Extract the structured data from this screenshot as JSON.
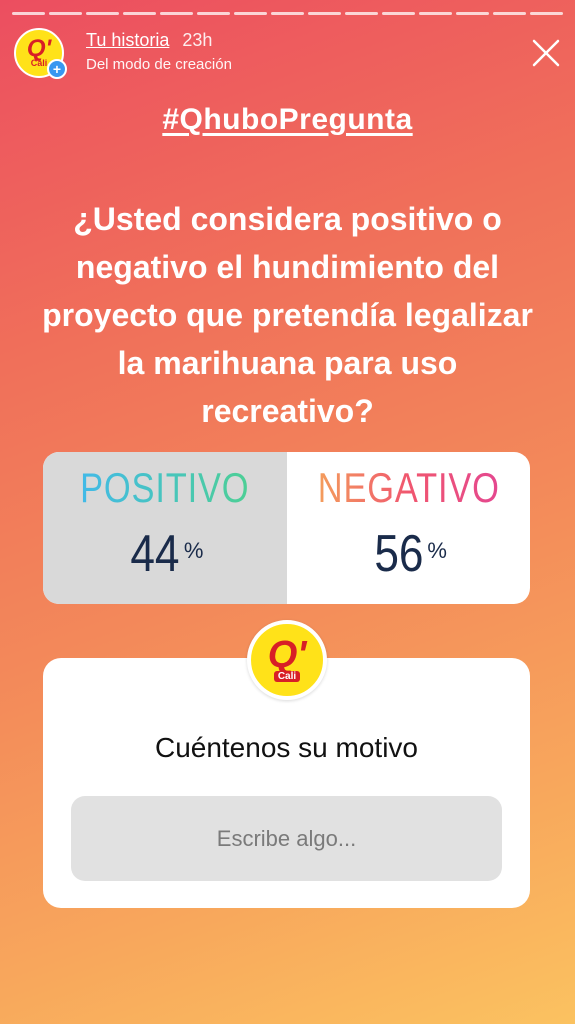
{
  "story": {
    "progress_segments": 15,
    "author": "Tu historia",
    "time": "23h",
    "subtitle": "Del modo de creación",
    "avatar_text": "Q'",
    "avatar_subtext": "Cali"
  },
  "sticker": {
    "hashtag": "#QhuboPregunta"
  },
  "question": "¿Usted considera positivo o negativo el hundimiento del proyecto que pretendía legalizar la marihuana para uso recreativo?",
  "poll": {
    "options": [
      {
        "label": "POSITIVO",
        "percent": "44",
        "symbol": "%"
      },
      {
        "label": "NEGATIVO",
        "percent": "56",
        "symbol": "%"
      }
    ]
  },
  "question_box": {
    "logo_text": "Q'",
    "logo_subtext": "Cali",
    "prompt": "Cuéntenos su motivo",
    "placeholder": "Escribe algo..."
  },
  "colors": {
    "brand_yellow": "#ffe219",
    "brand_red": "#d81f26"
  }
}
